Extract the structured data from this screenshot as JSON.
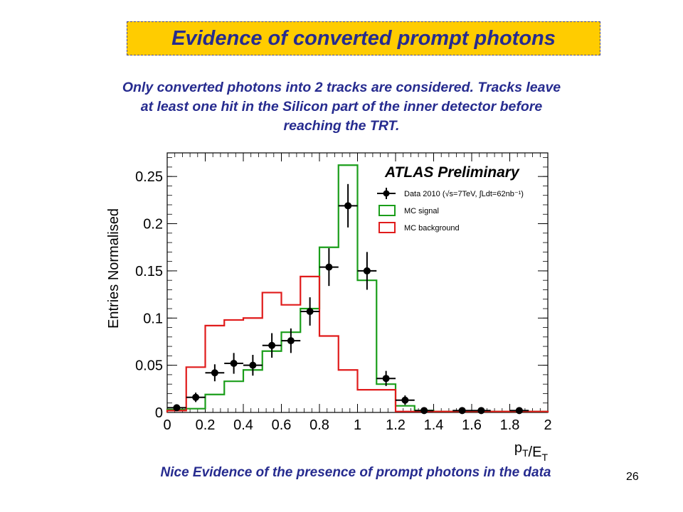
{
  "slide": {
    "title": "Evidence of converted prompt photons",
    "subtitle_lines": [
      "Only converted photons into 2 tracks are considered. Tracks leave",
      "at least one hit in the Silicon part of the inner detector before",
      "reaching the TRT."
    ],
    "footer": "Nice Evidence of the presence of prompt photons in the data",
    "page_number": "26",
    "accent_color": "#ffcc00",
    "text_color": "#262b8f"
  },
  "chart_data": {
    "type": "histogram",
    "title": "ATLAS Preliminary",
    "xlabel": "pT/ET",
    "ylabel": "Entries Normalised",
    "xlim": [
      0,
      2
    ],
    "ylim": [
      0,
      0.275
    ],
    "xticks": [
      "0",
      "0.2",
      "0.4",
      "0.6",
      "0.8",
      "1",
      "1.2",
      "1.4",
      "1.6",
      "1.8",
      "2"
    ],
    "yticks": [
      "0",
      "0.05",
      "0.1",
      "0.15",
      "0.2",
      "0.25"
    ],
    "legend_position": "top-right",
    "legend": [
      {
        "label": "Data 2010 (√s=7TeV, ∫Ldt=62nb⁻¹)",
        "style": "marker",
        "color": "#000000"
      },
      {
        "label": "MC signal",
        "style": "line",
        "color": "#1a9e1a"
      },
      {
        "label": "MC background",
        "style": "line",
        "color": "#e01b1b"
      }
    ],
    "bin_edges": [
      0,
      0.1,
      0.2,
      0.3,
      0.4,
      0.5,
      0.6,
      0.7,
      0.8,
      0.9,
      1.0,
      1.1,
      1.2,
      1.3,
      1.4,
      1.5,
      1.6,
      1.7,
      1.8,
      1.9,
      2.0
    ],
    "series": [
      {
        "name": "MC signal",
        "type": "step",
        "color": "#1a9e1a",
        "values": [
          0.003,
          0.004,
          0.019,
          0.033,
          0.045,
          0.065,
          0.085,
          0.11,
          0.175,
          0.262,
          0.14,
          0.03,
          0.007,
          0.002,
          0.001,
          0.001,
          0.001,
          0.001,
          0.001,
          0.001
        ]
      },
      {
        "name": "MC background",
        "type": "step",
        "color": "#e01b1b",
        "values": [
          0.002,
          0.048,
          0.092,
          0.098,
          0.1,
          0.127,
          0.114,
          0.144,
          0.081,
          0.045,
          0.024,
          0.024,
          0.001,
          0.001,
          0.001,
          0.001,
          0.001,
          0.001,
          0.001,
          0.001
        ]
      },
      {
        "name": "Data 2010",
        "type": "points",
        "color": "#000000",
        "points": [
          {
            "x": 0.05,
            "y": 0.005,
            "err": 0.003
          },
          {
            "x": 0.15,
            "y": 0.016,
            "err": 0.005
          },
          {
            "x": 0.25,
            "y": 0.042,
            "err": 0.009
          },
          {
            "x": 0.35,
            "y": 0.052,
            "err": 0.011
          },
          {
            "x": 0.45,
            "y": 0.05,
            "err": 0.011
          },
          {
            "x": 0.55,
            "y": 0.071,
            "err": 0.013
          },
          {
            "x": 0.65,
            "y": 0.076,
            "err": 0.013
          },
          {
            "x": 0.75,
            "y": 0.107,
            "err": 0.015
          },
          {
            "x": 0.85,
            "y": 0.154,
            "err": 0.02
          },
          {
            "x": 0.95,
            "y": 0.219,
            "err": 0.023
          },
          {
            "x": 1.05,
            "y": 0.15,
            "err": 0.02
          },
          {
            "x": 1.15,
            "y": 0.036,
            "err": 0.008
          },
          {
            "x": 1.25,
            "y": 0.013,
            "err": 0.005
          },
          {
            "x": 1.35,
            "y": 0.002,
            "err": 0.002
          },
          {
            "x": 1.55,
            "y": 0.002,
            "err": 0.002
          },
          {
            "x": 1.65,
            "y": 0.002,
            "err": 0.002
          },
          {
            "x": 1.85,
            "y": 0.002,
            "err": 0.002
          }
        ]
      }
    ]
  }
}
